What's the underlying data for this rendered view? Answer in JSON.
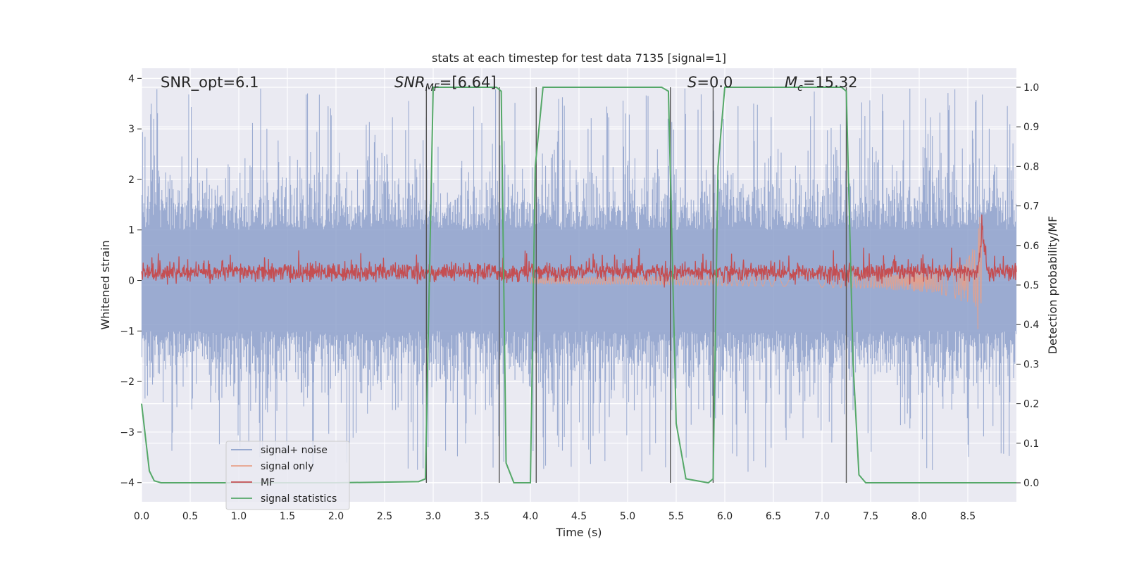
{
  "chart_data": {
    "type": "line",
    "title": "stats at each timestep for test data 7135 [signal=1]",
    "xlabel": "Time (s)",
    "ylabel_left": "Whitened strain",
    "ylabel_right": "Detection probability/MF",
    "xlim": [
      0.0,
      9.0
    ],
    "ylim_left": [
      -4.38,
      4.2
    ],
    "ylim_right": [
      -0.048,
      1.048
    ],
    "x_ticks": [
      "0.0",
      "0.5",
      "1.0",
      "1.5",
      "2.0",
      "2.5",
      "3.0",
      "3.5",
      "4.0",
      "4.5",
      "5.0",
      "5.5",
      "6.0",
      "6.5",
      "7.0",
      "7.5",
      "8.0",
      "8.5"
    ],
    "y_ticks_left": [
      "4",
      "3",
      "2",
      "1",
      "0",
      "−1",
      "−2",
      "−3",
      "−4"
    ],
    "y_ticks_right": [
      "1.0",
      "0.9",
      "0.8",
      "0.7",
      "0.6",
      "0.5",
      "0.4",
      "0.3",
      "0.2",
      "0.1",
      "0.0"
    ],
    "grid": true,
    "legend_position": "lower-left",
    "annotations": {
      "snr_opt": "SNR_opt=6.1",
      "snr_mf_main": "SNR",
      "snr_mf_sub": "MF",
      "snr_mf_value": "=[6.64]",
      "s_main": "S",
      "s_value": "=0.0",
      "mc_main": "M",
      "mc_sub": "c",
      "mc_value": "=15.32"
    },
    "series": [
      {
        "name": "signal+ noise",
        "color": "#8da0cb",
        "axis": "left",
        "description": "whitened strain, approx. gaussian noise with std ~0.8, spikes up to ~3.8"
      },
      {
        "name": "signal only",
        "color": "#e8a088",
        "axis": "left",
        "description": "chirp growing toward merger at ~8.65 s, peak amplitude ~1.3"
      },
      {
        "name": "MF",
        "color": "#c44e52",
        "axis": "left",
        "description": "matched filter output, centered ~0.15, with a peak ~1.0 near 8.65 s"
      },
      {
        "name": "signal statistics",
        "color": "#55a868",
        "axis": "right",
        "x": [
          0.0,
          0.08,
          0.13,
          0.2,
          1.0,
          2.0,
          2.85,
          2.92,
          3.0,
          3.05,
          3.65,
          3.7,
          3.75,
          3.83,
          4.0,
          4.05,
          4.13,
          5.35,
          5.42,
          5.5,
          5.6,
          5.83,
          5.88,
          5.93,
          6.0,
          7.2,
          7.25,
          7.32,
          7.38,
          7.45,
          8.0,
          9.0
        ],
        "values": [
          0.2,
          0.03,
          0.005,
          0.0,
          0.0,
          0.0,
          0.003,
          0.01,
          1.0,
          1.0,
          1.0,
          0.99,
          0.05,
          0.0,
          0.0,
          0.8,
          1.0,
          1.0,
          0.99,
          0.15,
          0.01,
          0.0,
          0.01,
          0.8,
          1.0,
          1.0,
          0.99,
          0.3,
          0.02,
          0.0,
          0.0,
          0.0
        ]
      }
    ],
    "vertical_lines_x": [
      2.93,
      3.68,
      4.06,
      5.44,
      5.88,
      7.25
    ]
  }
}
